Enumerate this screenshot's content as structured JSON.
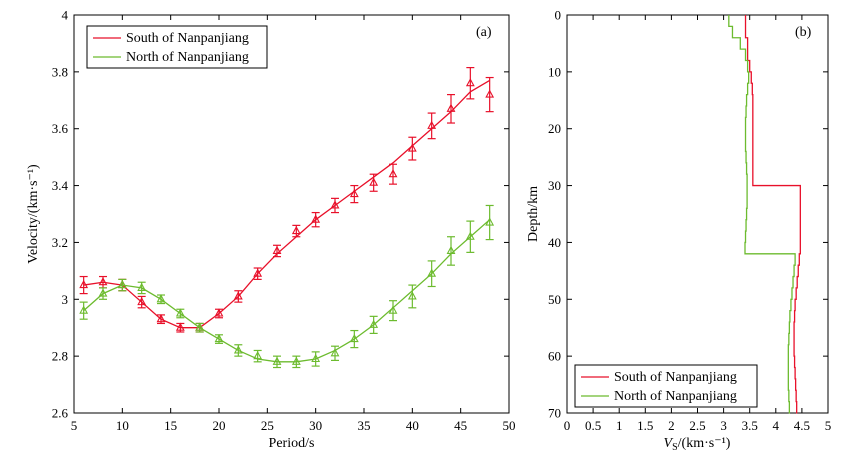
{
  "chart_data": [
    {
      "type": "line",
      "panel_label": "(a)",
      "xlabel": "Period/s",
      "ylabel": "Velocity/(km·s⁻¹)",
      "xlim": [
        5,
        50
      ],
      "ylim": [
        2.6,
        4.0
      ],
      "x_ticks": [
        "5",
        "10",
        "15",
        "20",
        "25",
        "30",
        "35",
        "40",
        "45",
        "50"
      ],
      "y_ticks": [
        "2.6",
        "2.8",
        "3",
        "3.2",
        "3.4",
        "3.6",
        "3.8",
        "4"
      ],
      "legend_position": "top-left",
      "series": [
        {
          "name": "South of Nanpanjiang",
          "color": "#e8102a",
          "marker": "triangle-up",
          "x": [
            6,
            8,
            10,
            12,
            14,
            16,
            18,
            20,
            22,
            24,
            26,
            28,
            30,
            32,
            34,
            36,
            38,
            40,
            42,
            44,
            46,
            48
          ],
          "values": [
            3.05,
            3.06,
            3.05,
            2.99,
            2.93,
            2.9,
            2.9,
            2.95,
            3.01,
            3.09,
            3.17,
            3.24,
            3.28,
            3.33,
            3.37,
            3.41,
            3.44,
            3.53,
            3.61,
            3.67,
            3.76,
            3.72
          ],
          "errors": [
            0.03,
            0.02,
            0.02,
            0.02,
            0.015,
            0.015,
            0.015,
            0.015,
            0.02,
            0.02,
            0.02,
            0.02,
            0.025,
            0.025,
            0.03,
            0.03,
            0.035,
            0.04,
            0.045,
            0.05,
            0.055,
            0.06
          ],
          "fit": [
            3.05,
            3.06,
            3.05,
            2.99,
            2.93,
            2.9,
            2.9,
            2.95,
            3.01,
            3.09,
            3.16,
            3.22,
            3.28,
            3.33,
            3.38,
            3.43,
            3.48,
            3.54,
            3.6,
            3.66,
            3.73,
            3.77
          ]
        },
        {
          "name": "North of Nanpanjiang",
          "color": "#6cbb2e",
          "marker": "triangle-up",
          "x": [
            6,
            8,
            10,
            12,
            14,
            16,
            18,
            20,
            22,
            24,
            26,
            28,
            30,
            32,
            34,
            36,
            38,
            40,
            42,
            44,
            46,
            48
          ],
          "values": [
            2.96,
            3.02,
            3.05,
            3.04,
            3.0,
            2.95,
            2.9,
            2.86,
            2.82,
            2.8,
            2.78,
            2.78,
            2.79,
            2.81,
            2.86,
            2.91,
            2.96,
            3.01,
            3.09,
            3.17,
            3.22,
            3.27
          ],
          "errors": [
            0.03,
            0.02,
            0.02,
            0.02,
            0.015,
            0.015,
            0.015,
            0.015,
            0.02,
            0.02,
            0.02,
            0.02,
            0.025,
            0.025,
            0.03,
            0.03,
            0.035,
            0.04,
            0.045,
            0.05,
            0.055,
            0.06
          ],
          "fit": [
            2.96,
            3.02,
            3.05,
            3.04,
            3.0,
            2.95,
            2.9,
            2.86,
            2.82,
            2.79,
            2.78,
            2.78,
            2.79,
            2.82,
            2.86,
            2.91,
            2.97,
            3.03,
            3.09,
            3.16,
            3.22,
            3.28
          ]
        }
      ]
    },
    {
      "type": "line",
      "panel_label": "(b)",
      "xlabel_main": "V",
      "xlabel_sub": "S",
      "xlabel_rest": "/(km·s⁻¹)",
      "ylabel": "Depth/km",
      "xlim": [
        0,
        5
      ],
      "ylim": [
        0,
        70
      ],
      "y_reversed": true,
      "x_ticks": [
        "0",
        "0.5",
        "1",
        "1.5",
        "2",
        "2.5",
        "3",
        "3.5",
        "4",
        "4.5",
        "5"
      ],
      "y_ticks": [
        "0",
        "10",
        "20",
        "30",
        "40",
        "50",
        "60",
        "70"
      ],
      "legend_position": "bottom-left",
      "series": [
        {
          "name": "South of Nanpanjiang",
          "color": "#e8102a",
          "depth": [
            0,
            2,
            4,
            6,
            8,
            10,
            12,
            14,
            16,
            18,
            20,
            22,
            24,
            26,
            28,
            30,
            30,
            32,
            34,
            36,
            38,
            40,
            42,
            44,
            46,
            48,
            50,
            52,
            54,
            56,
            58,
            60,
            62,
            64,
            66,
            68,
            70
          ],
          "vs": [
            3.42,
            3.42,
            3.46,
            3.46,
            3.5,
            3.53,
            3.55,
            3.56,
            3.56,
            3.56,
            3.56,
            3.56,
            3.56,
            3.56,
            3.56,
            3.56,
            4.47,
            4.47,
            4.47,
            4.47,
            4.47,
            4.47,
            4.45,
            4.43,
            4.41,
            4.39,
            4.37,
            4.36,
            4.35,
            4.35,
            4.35,
            4.36,
            4.37,
            4.38,
            4.39,
            4.4,
            4.41
          ]
        },
        {
          "name": "North of Nanpanjiang",
          "color": "#6cbb2e",
          "depth": [
            0,
            2,
            4,
            6,
            8,
            10,
            12,
            14,
            16,
            18,
            20,
            22,
            24,
            26,
            28,
            30,
            32,
            34,
            36,
            38,
            40,
            42,
            42,
            44,
            46,
            48,
            50,
            52,
            54,
            56,
            58,
            60,
            62,
            64,
            66,
            68,
            70
          ],
          "vs": [
            3.1,
            3.17,
            3.32,
            3.42,
            3.46,
            3.48,
            3.46,
            3.44,
            3.43,
            3.42,
            3.42,
            3.42,
            3.43,
            3.44,
            3.45,
            3.45,
            3.45,
            3.44,
            3.43,
            3.42,
            3.41,
            3.41,
            4.37,
            4.35,
            4.33,
            4.31,
            4.29,
            4.27,
            4.26,
            4.25,
            4.24,
            4.24,
            4.24,
            4.24,
            4.25,
            4.26,
            4.27
          ]
        }
      ]
    }
  ]
}
